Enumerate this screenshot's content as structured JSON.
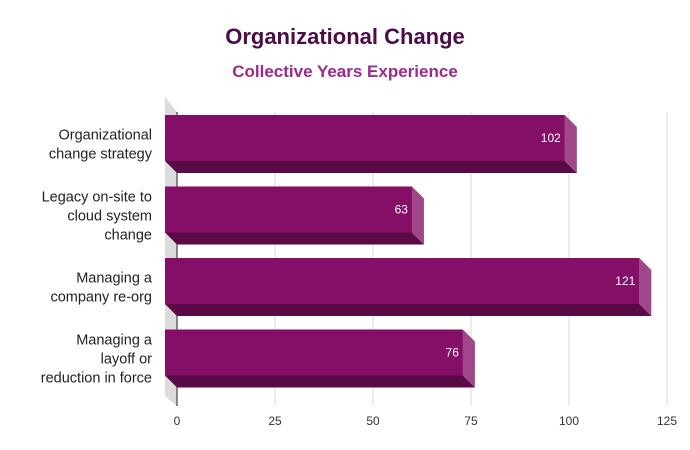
{
  "colors": {
    "title": "#4a0d47",
    "subtitle": "#9b2a8e",
    "bar_front": "#850e66",
    "bar_bottom": "#5a0a44",
    "bar_side": "#a0478a",
    "grid": "#d9d9d9",
    "floor": "#dcdcdc"
  },
  "chart_data": {
    "type": "bar",
    "orientation": "horizontal",
    "title": "Organizational Change",
    "subtitle": "Collective Years Experience",
    "categories": [
      [
        "Organizational",
        "change strategy"
      ],
      [
        "Legacy on-site to",
        "cloud system",
        "change"
      ],
      [
        "Managing a",
        "company re-org"
      ],
      [
        "Managing a",
        "layoff or",
        "reduction in force"
      ]
    ],
    "values": [
      102,
      63,
      121,
      76
    ],
    "value_labels": [
      "102",
      "63",
      "121",
      "76"
    ],
    "xlim": [
      0,
      125
    ],
    "x_ticks": [
      0,
      25,
      50,
      75,
      100,
      125
    ],
    "x_tick_labels": [
      "0",
      "25",
      "50",
      "75",
      "100",
      "125"
    ],
    "grid": true,
    "legend": "none",
    "style": "3d"
  }
}
